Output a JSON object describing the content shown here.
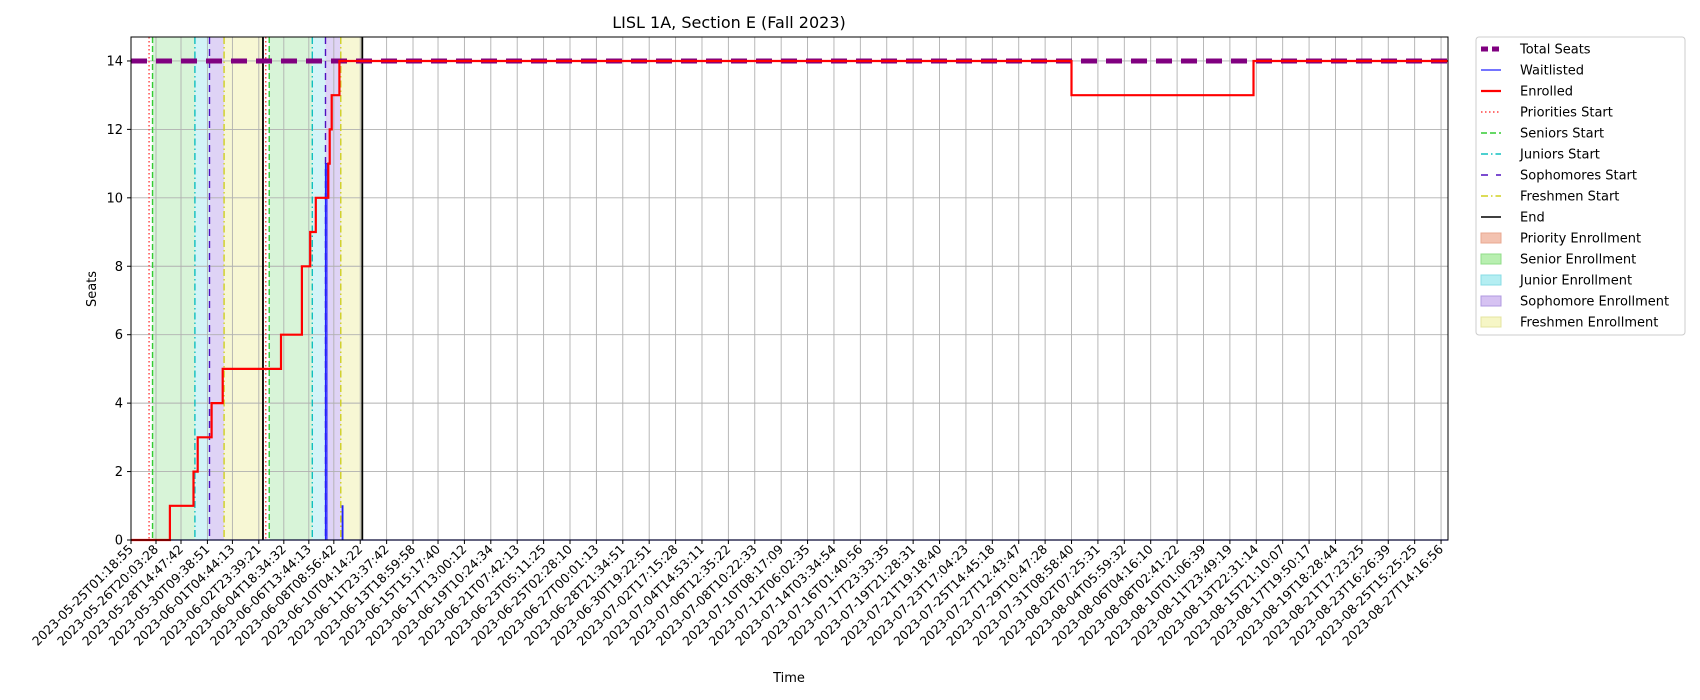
{
  "chart_data": {
    "type": "line",
    "title": "LISL 1A, Section E (Fall 2023)",
    "xlabel": "Time",
    "ylabel": "Seats",
    "ylim": [
      0,
      14.7
    ],
    "yticks": [
      0,
      2,
      4,
      6,
      8,
      10,
      12,
      14
    ],
    "xlim_day": [
      0,
      94.8
    ],
    "grid": true,
    "legend_position": "outside-right",
    "xticks": [
      {
        "day": 0,
        "label": "2023-05-25T01:18:55"
      },
      {
        "day": 1.8,
        "label": "2023-05-26T20:03:28"
      },
      {
        "day": 3.6,
        "label": "2023-05-28T14:47:42"
      },
      {
        "day": 5.5,
        "label": "2023-05-30T09:38:51"
      },
      {
        "day": 7.3,
        "label": "2023-06-01T04:44:13"
      },
      {
        "day": 9.2,
        "label": "2023-06-02T23:39:21"
      },
      {
        "day": 11.0,
        "label": "2023-06-04T18:34:32"
      },
      {
        "day": 12.8,
        "label": "2023-06-06T13:44:13"
      },
      {
        "day": 14.6,
        "label": "2023-06-08T08:56:42"
      },
      {
        "day": 16.5,
        "label": "2023-06-10T04:14:22"
      },
      {
        "day": 18.4,
        "label": "2023-06-11T23:37:42"
      },
      {
        "day": 20.3,
        "label": "2023-06-13T18:59:58"
      },
      {
        "day": 22.1,
        "label": "2023-06-15T15:17:40"
      },
      {
        "day": 24.0,
        "label": "2023-06-17T13:00:12"
      },
      {
        "day": 25.9,
        "label": "2023-06-19T10:24:34"
      },
      {
        "day": 27.8,
        "label": "2023-06-21T07:42:13"
      },
      {
        "day": 29.7,
        "label": "2023-06-23T05:11:25"
      },
      {
        "day": 31.6,
        "label": "2023-06-25T02:28:10"
      },
      {
        "day": 33.5,
        "label": "2023-06-27T00:01:13"
      },
      {
        "day": 35.4,
        "label": "2023-06-28T21:34:51"
      },
      {
        "day": 37.3,
        "label": "2023-06-30T19:22:51"
      },
      {
        "day": 39.2,
        "label": "2023-07-02T17:15:28"
      },
      {
        "day": 41.1,
        "label": "2023-07-04T14:53:11"
      },
      {
        "day": 43.0,
        "label": "2023-07-06T12:35:22"
      },
      {
        "day": 44.9,
        "label": "2023-07-08T10:22:33"
      },
      {
        "day": 46.8,
        "label": "2023-07-10T08:17:09"
      },
      {
        "day": 48.7,
        "label": "2023-07-12T06:02:35"
      },
      {
        "day": 50.6,
        "label": "2023-07-14T03:34:54"
      },
      {
        "day": 52.5,
        "label": "2023-07-16T01:40:56"
      },
      {
        "day": 54.4,
        "label": "2023-07-17T23:33:35"
      },
      {
        "day": 56.3,
        "label": "2023-07-19T21:28:31"
      },
      {
        "day": 58.2,
        "label": "2023-07-21T19:18:40"
      },
      {
        "day": 60.1,
        "label": "2023-07-23T17:04:23"
      },
      {
        "day": 62.0,
        "label": "2023-07-25T14:45:18"
      },
      {
        "day": 63.9,
        "label": "2023-07-27T12:43:47"
      },
      {
        "day": 65.8,
        "label": "2023-07-29T10:47:28"
      },
      {
        "day": 67.7,
        "label": "2023-07-31T08:58:40"
      },
      {
        "day": 69.6,
        "label": "2023-08-02T07:25:31"
      },
      {
        "day": 71.5,
        "label": "2023-08-04T05:59:32"
      },
      {
        "day": 73.4,
        "label": "2023-08-06T04:16:10"
      },
      {
        "day": 75.3,
        "label": "2023-08-08T02:41:22"
      },
      {
        "day": 77.2,
        "label": "2023-08-10T01:06:39"
      },
      {
        "day": 79.1,
        "label": "2023-08-11T23:49:19"
      },
      {
        "day": 81.0,
        "label": "2023-08-13T22:31:14"
      },
      {
        "day": 82.9,
        "label": "2023-08-15T21:10:07"
      },
      {
        "day": 84.8,
        "label": "2023-08-17T19:50:17"
      },
      {
        "day": 86.7,
        "label": "2023-08-19T18:28:44"
      },
      {
        "day": 88.6,
        "label": "2023-08-21T17:23:25"
      },
      {
        "day": 90.5,
        "label": "2023-08-23T16:26:39"
      },
      {
        "day": 92.4,
        "label": "2023-08-25T15:25:25"
      },
      {
        "day": 94.3,
        "label": "2023-08-27T14:16:56"
      }
    ],
    "shaded_periods": [
      {
        "name": "Senior Enrollment",
        "start": 1.55,
        "end": 4.6,
        "color": "#90e090",
        "opacity": 0.35
      },
      {
        "name": "Junior Enrollment",
        "start": 4.6,
        "end": 5.65,
        "color": "#80e0e8",
        "opacity": 0.35
      },
      {
        "name": "Sophomore Enrollment",
        "start": 5.65,
        "end": 6.7,
        "color": "#b090e8",
        "opacity": 0.4
      },
      {
        "name": "Freshmen Enrollment",
        "start": 6.7,
        "end": 9.5,
        "color": "#eeeea0",
        "opacity": 0.45
      },
      {
        "name": "Senior Enrollment",
        "start": 9.95,
        "end": 13.05,
        "color": "#90e090",
        "opacity": 0.35
      },
      {
        "name": "Junior Enrollment",
        "start": 13.05,
        "end": 14.0,
        "color": "#80e0e8",
        "opacity": 0.35
      },
      {
        "name": "Sophomore Enrollment",
        "start": 14.0,
        "end": 15.1,
        "color": "#b090e8",
        "opacity": 0.4
      },
      {
        "name": "Freshmen Enrollment",
        "start": 15.1,
        "end": 16.65,
        "color": "#eeeea0",
        "opacity": 0.45
      }
    ],
    "event_lines": [
      {
        "name": "Priorities Start",
        "day": 1.3,
        "color": "#ff4040",
        "dash": "1.5,2.5"
      },
      {
        "name": "Seniors Start",
        "day": 1.55,
        "color": "#33cc33",
        "dash": "6,3"
      },
      {
        "name": "Juniors Start",
        "day": 4.6,
        "color": "#10c0c0",
        "dash": "7,3,1.5,3"
      },
      {
        "name": "Sophomores Start",
        "day": 5.65,
        "color": "#5010c0",
        "dash": "7,5"
      },
      {
        "name": "Freshmen Start",
        "day": 6.7,
        "color": "#d0d020",
        "dash": "7,3,1.5,3"
      },
      {
        "name": "End",
        "day": 9.5,
        "color": "#000000",
        "dash": ""
      },
      {
        "name": "Priorities Start",
        "day": 9.7,
        "color": "#ff4040",
        "dash": "1.5,2.5"
      },
      {
        "name": "Seniors Start",
        "day": 9.95,
        "color": "#33cc33",
        "dash": "6,3"
      },
      {
        "name": "Juniors Start",
        "day": 13.05,
        "color": "#10c0c0",
        "dash": "7,3,1.5,3"
      },
      {
        "name": "Sophomores Start",
        "day": 14.0,
        "color": "#5010c0",
        "dash": "7,5"
      },
      {
        "name": "Freshmen Start",
        "day": 15.1,
        "color": "#d0d020",
        "dash": "7,3,1.5,3"
      },
      {
        "name": "End",
        "day": 16.65,
        "color": "#000000",
        "dash": ""
      }
    ],
    "series": [
      {
        "name": "Total Seats",
        "color": "#800080",
        "style": "dashed-thick",
        "points": [
          [
            0,
            14
          ],
          [
            94.8,
            14
          ]
        ]
      },
      {
        "name": "Waitlisted",
        "color": "#2020ff",
        "style": "solid-thin",
        "points": [
          [
            0,
            0
          ],
          [
            14.0,
            0
          ],
          [
            14.0,
            11
          ],
          [
            14.1,
            11
          ],
          [
            14.1,
            0
          ],
          [
            15.2,
            0
          ],
          [
            15.2,
            1
          ],
          [
            15.25,
            1
          ],
          [
            15.25,
            0
          ],
          [
            94.8,
            0
          ]
        ]
      },
      {
        "name": "Enrolled",
        "color": "#ff0000",
        "style": "solid",
        "points": [
          [
            0,
            0
          ],
          [
            2.8,
            0
          ],
          [
            2.8,
            1
          ],
          [
            4.5,
            1
          ],
          [
            4.5,
            2
          ],
          [
            4.8,
            2
          ],
          [
            4.8,
            3
          ],
          [
            5.8,
            3
          ],
          [
            5.8,
            4
          ],
          [
            6.6,
            4
          ],
          [
            6.6,
            5
          ],
          [
            10.8,
            5
          ],
          [
            10.8,
            6
          ],
          [
            12.3,
            6
          ],
          [
            12.3,
            8
          ],
          [
            12.9,
            8
          ],
          [
            12.9,
            9
          ],
          [
            13.3,
            9
          ],
          [
            13.3,
            10
          ],
          [
            14.2,
            10
          ],
          [
            14.2,
            11
          ],
          [
            14.3,
            11
          ],
          [
            14.3,
            12
          ],
          [
            14.45,
            12
          ],
          [
            14.45,
            13
          ],
          [
            15.0,
            13
          ],
          [
            15.0,
            14
          ],
          [
            67.7,
            14
          ],
          [
            67.7,
            13
          ],
          [
            80.8,
            13
          ],
          [
            80.8,
            14
          ],
          [
            94.8,
            14
          ]
        ]
      }
    ],
    "legend": [
      {
        "label": "Total Seats",
        "kind": "line",
        "color": "#800080",
        "dash": "7,4",
        "width": 5
      },
      {
        "label": "Waitlisted",
        "kind": "line",
        "color": "#2020ff",
        "dash": "",
        "width": 1.2
      },
      {
        "label": "Enrolled",
        "kind": "line",
        "color": "#ff0000",
        "dash": "",
        "width": 2.2
      },
      {
        "label": "Priorities Start",
        "kind": "line",
        "color": "#ff4040",
        "dash": "1.5,2.5",
        "width": 1.4
      },
      {
        "label": "Seniors Start",
        "kind": "line",
        "color": "#33cc33",
        "dash": "6,3",
        "width": 1.4
      },
      {
        "label": "Juniors Start",
        "kind": "line",
        "color": "#10c0c0",
        "dash": "7,3,1.5,3",
        "width": 1.4
      },
      {
        "label": "Sophomores Start",
        "kind": "line",
        "color": "#5010c0",
        "dash": "7,8",
        "width": 1.4
      },
      {
        "label": "Freshmen Start",
        "kind": "line",
        "color": "#d0d020",
        "dash": "7,3,1.5,3",
        "width": 1.4
      },
      {
        "label": "End",
        "kind": "line",
        "color": "#000000",
        "dash": "",
        "width": 1.6
      },
      {
        "label": "Priority Enrollment",
        "kind": "patch",
        "color": "#f3c2b0",
        "border": "#e8a890"
      },
      {
        "label": "Senior Enrollment",
        "kind": "patch",
        "color": "#b8efb0",
        "border": "#90dc88"
      },
      {
        "label": "Junior Enrollment",
        "kind": "patch",
        "color": "#b4eef2",
        "border": "#88dce4"
      },
      {
        "label": "Sophomore Enrollment",
        "kind": "patch",
        "color": "#d6c2f2",
        "border": "#b09ae0"
      },
      {
        "label": "Freshmen Enrollment",
        "kind": "patch",
        "color": "#f6f6c6",
        "border": "#e4e4a0"
      }
    ]
  }
}
